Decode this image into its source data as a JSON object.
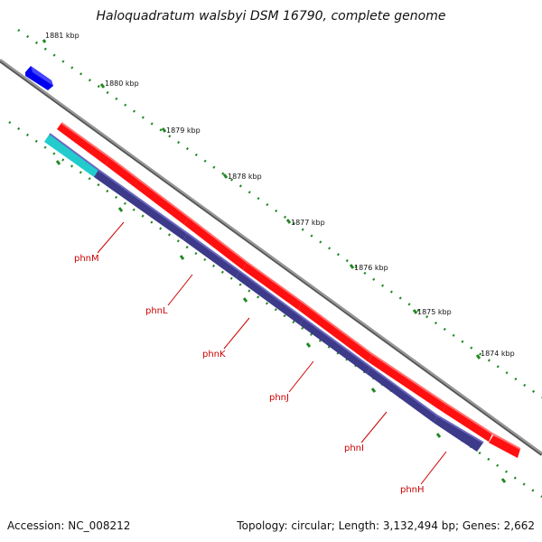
{
  "title": "Haloquadratum walsbyi DSM 16790, complete genome",
  "ticks": [
    "1881 kbp",
    "1880 kbp",
    "1879 kbp",
    "1878 kbp",
    "1877 kbp",
    "1876 kbp",
    "1875 kbp",
    "1874 kbp"
  ],
  "genes": [
    "phnM",
    "phnL",
    "phnK",
    "phnJ",
    "phnI",
    "phnH"
  ],
  "footer": {
    "accession": "Accession: NC_008212",
    "topology": "Topology: circular; Length: 3,132,494 bp; Genes: 2,662"
  },
  "colors": {
    "forward_genes": "#ff0000",
    "reverse_genes": "#3d3a8a",
    "blue_gene": "#0000ee",
    "cyan_gene": "#22cccc",
    "tick_marks": "#228822",
    "label_color": "#cc0000",
    "backbone": "#888888"
  }
}
